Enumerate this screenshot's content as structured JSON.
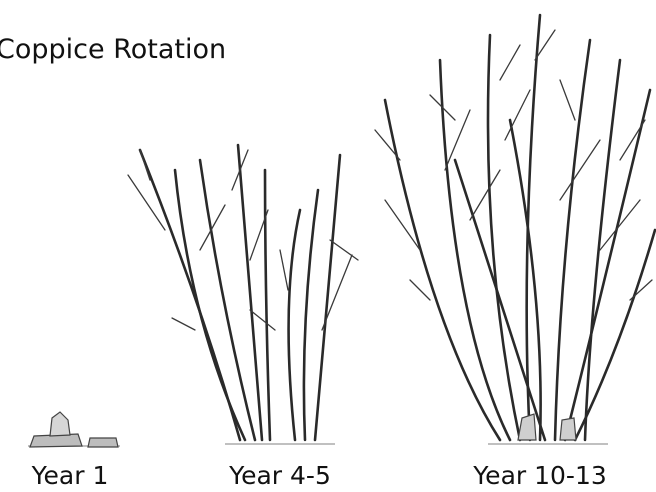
{
  "title": "Coppice Rotation",
  "stages": [
    {
      "label": "Year 1"
    },
    {
      "label": "Year 4-5"
    },
    {
      "label": "Year 10-13"
    }
  ]
}
